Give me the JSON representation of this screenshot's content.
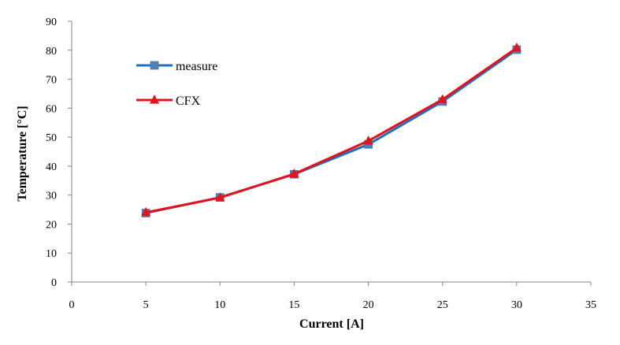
{
  "chart_data": {
    "type": "line",
    "title": "",
    "xlabel": "Current [A]",
    "ylabel": "Temperature [°C]",
    "xlim": [
      0,
      35
    ],
    "ylim": [
      0,
      90
    ],
    "xticks": [
      0,
      5,
      10,
      15,
      20,
      25,
      30,
      35
    ],
    "yticks": [
      0,
      10,
      20,
      30,
      40,
      50,
      60,
      70,
      80,
      90
    ],
    "grid": false,
    "legend_position": "upper-left",
    "x": [
      5,
      10,
      15,
      20,
      25,
      30
    ],
    "series": [
      {
        "name": "measure",
        "marker": "square",
        "color": "#1f6fbf",
        "markerColor": "#4f81bd",
        "values": [
          23.8,
          29.2,
          37.2,
          47.5,
          62.3,
          80.2
        ]
      },
      {
        "name": "CFX",
        "marker": "triangle",
        "color": "#e3121b",
        "markerColor": "#e3121b",
        "values": [
          24.0,
          29.1,
          37.3,
          48.7,
          63.0,
          80.8
        ]
      }
    ]
  }
}
